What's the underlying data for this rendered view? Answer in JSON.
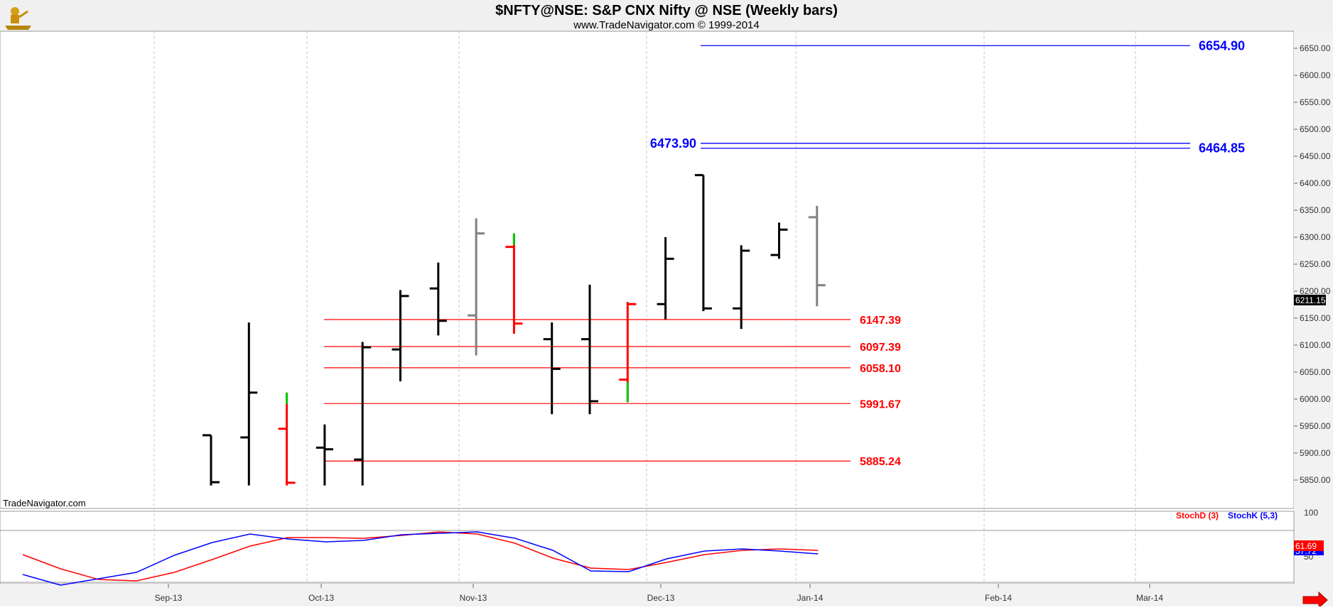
{
  "header": {
    "title": "$NFTY@NSE:  S&P CNX Nifty @ NSE  (Weekly bars)",
    "subtitle": "www.TradeNavigator.com © 1999-2014",
    "watermark": "TradeNavigator.com",
    "logo_icon": "gold-figure-logo-icon"
  },
  "chart_data": [
    {
      "type": "ohlc",
      "title": "$NFTY@NSE:  S&P CNX Nifty @ NSE  (Weekly bars)",
      "ylim": [
        5840,
        6680
      ],
      "y_ticks": [
        "5850.00",
        "5900.00",
        "5950.00",
        "6000.00",
        "6050.00",
        "6100.00",
        "6150.00",
        "6200.00",
        "6250.00",
        "6300.00",
        "6350.00",
        "6400.00",
        "6450.00",
        "6500.00",
        "6550.00",
        "6600.00",
        "6650.00"
      ],
      "x_labels": [
        "Sep-13",
        "Oct-13",
        "Nov-13",
        "Dec-13",
        "Jan-14",
        "Feb-14",
        "Mar-14"
      ],
      "last_price": "6211.15",
      "bars": [
        {
          "date": "2013-09-20",
          "open": 5933,
          "high": 5933,
          "low": 5840,
          "close": 5846,
          "color": "#000000"
        },
        {
          "date": "2013-09-27",
          "open": 5929,
          "high": 6142,
          "low": 5840,
          "close": 6012,
          "color": "#000000"
        },
        {
          "date": "2013-10-04",
          "open": 5945,
          "high": 6012,
          "low": 5840,
          "close": 5845,
          "color": "#ff0000",
          "high_color": "#00cc00"
        },
        {
          "date": "2013-10-11",
          "open": 5910,
          "high": 5953,
          "low": 5840,
          "close": 5907,
          "color": "#000000"
        },
        {
          "date": "2013-10-18",
          "open": 5888,
          "high": 6106,
          "low": 5840,
          "close": 6096,
          "color": "#000000"
        },
        {
          "date": "2013-10-25",
          "open": 6092,
          "high": 6202,
          "low": 6033,
          "close": 6191,
          "color": "#000000"
        },
        {
          "date": "2013-11-01",
          "open": 6205,
          "high": 6253,
          "low": 6118,
          "close": 6145,
          "color": "#000000"
        },
        {
          "date": "2013-11-08",
          "open": 6155,
          "high": 6335,
          "low": 6081,
          "close": 6307,
          "color": "#808080"
        },
        {
          "date": "2013-11-15",
          "open": 6282,
          "high": 6307,
          "low": 6121,
          "close": 6140,
          "color": "#ff0000",
          "high_color": "#00cc00"
        },
        {
          "date": "2013-11-22",
          "open": 6111,
          "high": 6142,
          "low": 5972,
          "close": 6056,
          "color": "#000000"
        },
        {
          "date": "2013-11-29",
          "open": 6111,
          "high": 6212,
          "low": 5972,
          "close": 5996,
          "color": "#000000"
        },
        {
          "date": "2013-12-06",
          "open": 6036,
          "high": 6180,
          "low": 5994,
          "close": 6176,
          "color": "#ff0000",
          "low_color": "#00cc00"
        },
        {
          "date": "2013-12-13",
          "open": 6176,
          "high": 6300,
          "low": 6148,
          "close": 6260,
          "color": "#000000"
        },
        {
          "date": "2013-12-20",
          "open": 6415,
          "high": 6415,
          "low": 6163,
          "close": 6168,
          "color": "#000000"
        },
        {
          "date": "2013-12-27",
          "open": 6168,
          "high": 6285,
          "low": 6130,
          "close": 6275,
          "color": "#000000"
        },
        {
          "date": "2014-01-03",
          "open": 6267,
          "high": 6327,
          "low": 6260,
          "close": 6314,
          "color": "#000000"
        },
        {
          "date": "2014-01-10",
          "open": 6337,
          "high": 6358,
          "low": 6172,
          "close": 6211,
          "color": "#808080"
        }
      ],
      "levels": [
        {
          "value": 6654.9,
          "label": "6654.90",
          "color": "#0000ff",
          "label_side": "right"
        },
        {
          "value": 6473.9,
          "label": "6473.90",
          "color": "#0000ff",
          "label_side": "left"
        },
        {
          "value": 6464.85,
          "label": "6464.85",
          "color": "#0000ff",
          "label_side": "right"
        },
        {
          "value": 6147.39,
          "label": "6147.39",
          "color": "#ff0000",
          "label_side": "right"
        },
        {
          "value": 6097.39,
          "label": "6097.39",
          "color": "#ff0000",
          "label_side": "right"
        },
        {
          "value": 6058.1,
          "label": "6058.10",
          "color": "#ff0000",
          "label_side": "right"
        },
        {
          "value": 5991.67,
          "label": "5991.67",
          "color": "#ff0000",
          "label_side": "right"
        },
        {
          "value": 5885.24,
          "label": "5885.24",
          "color": "#ff0000",
          "label_side": "right"
        }
      ]
    },
    {
      "type": "line",
      "ylim": [
        0,
        100
      ],
      "y_ticks": [
        "50",
        "100"
      ],
      "last_value": "61.69",
      "last_value_k": "57.72",
      "series": [
        {
          "name": "StochD (3)",
          "color": "#ff0000",
          "values": [
            39,
            19,
            4,
            2,
            14,
            32,
            51,
            63,
            63,
            62,
            66,
            71,
            68,
            55,
            34,
            20,
            18,
            28,
            39,
            45,
            47,
            45
          ]
        },
        {
          "name": "StochK (5,3)",
          "color": "#0000ff",
          "values": [
            11,
            -4,
            5,
            14,
            38,
            56,
            68,
            61,
            57,
            59,
            67,
            69,
            71,
            62,
            45,
            16,
            15,
            33,
            44,
            47,
            44,
            40
          ]
        }
      ]
    }
  ]
}
